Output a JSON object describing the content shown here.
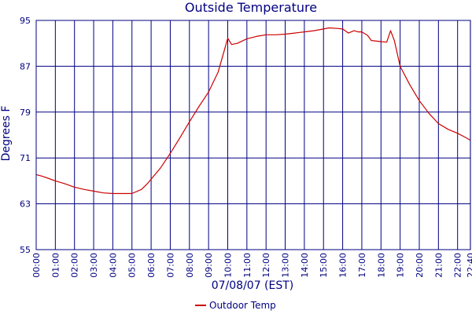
{
  "chart_data": {
    "type": "line",
    "title": "Outside Temperature",
    "ylabel": "Degrees F",
    "xlabel": "07/08/07 (EST)",
    "ylim": [
      55,
      95
    ],
    "xlim": [
      0,
      22.67
    ],
    "y_ticks": [
      "55",
      "63",
      "71",
      "79",
      "87",
      "95"
    ],
    "x_ticks": [
      "00:00",
      "01:00",
      "02:00",
      "03:00",
      "04:00",
      "05:00",
      "06:00",
      "07:00",
      "08:00",
      "09:00",
      "10:00",
      "11:00",
      "12:00",
      "13:00",
      "14:00",
      "15:00",
      "16:00",
      "17:00",
      "18:00",
      "19:00",
      "20:00",
      "21:00",
      "22:00",
      "22:40"
    ],
    "grid": true,
    "legend_position": "bottom-center",
    "colors": {
      "series": "#cc0000",
      "grid": "#000080",
      "text": "#000080"
    },
    "series": [
      {
        "name": "Outdoor Temp",
        "x": [
          0,
          0.33,
          0.67,
          1,
          1.5,
          2,
          2.5,
          3,
          3.5,
          4,
          4.5,
          5,
          5.5,
          5.8,
          6,
          6.5,
          7,
          7.5,
          8,
          8.5,
          9,
          9.5,
          9.8,
          10,
          10.2,
          10.5,
          11,
          11.5,
          12,
          12.5,
          13,
          13.5,
          14,
          14.5,
          15,
          15.3,
          15.7,
          16,
          16.3,
          16.6,
          16.8,
          17,
          17.3,
          17.5,
          18,
          18.3,
          18.5,
          18.7,
          19,
          19.5,
          20,
          20.5,
          21,
          21.5,
          22,
          22.4,
          22.67
        ],
        "values": [
          68.1,
          67.8,
          67.4,
          67.0,
          66.5,
          65.9,
          65.5,
          65.2,
          64.9,
          64.8,
          64.8,
          64.8,
          65.5,
          66.5,
          67.3,
          69.3,
          71.8,
          74.5,
          77.3,
          80.0,
          82.5,
          86.0,
          89.5,
          91.9,
          90.8,
          91.0,
          91.8,
          92.2,
          92.5,
          92.5,
          92.6,
          92.8,
          93.0,
          93.2,
          93.5,
          93.7,
          93.6,
          93.5,
          92.8,
          93.2,
          93.0,
          93.0,
          92.4,
          91.5,
          91.3,
          91.2,
          93.2,
          91.5,
          87.0,
          83.8,
          81.0,
          78.8,
          77.0,
          76.0,
          75.3,
          74.6,
          74.1
        ]
      }
    ]
  }
}
